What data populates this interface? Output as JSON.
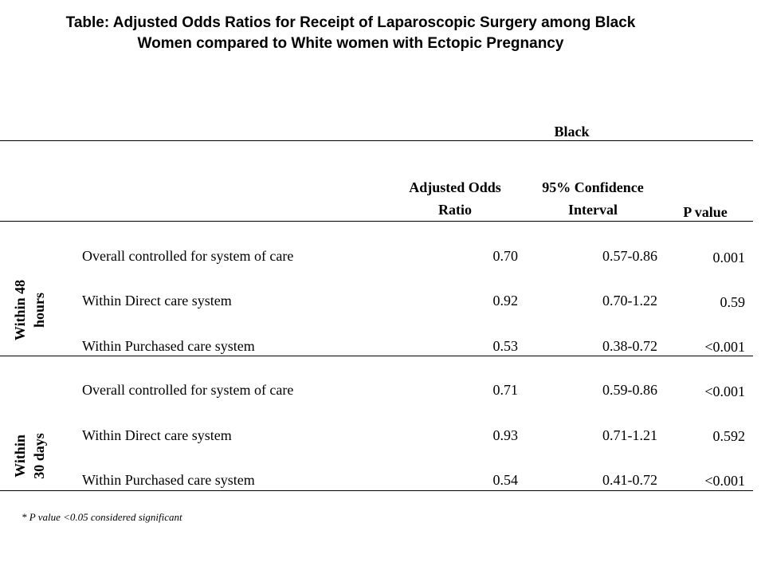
{
  "title": {
    "line1": "Table: Adjusted Odds Ratios for Receipt of Laparoscopic Surgery among Black",
    "line2": "Women compared to White women with Ectopic Pregnancy"
  },
  "table": {
    "group_header": "Black",
    "columns": {
      "aor_line1": "Adjusted Odds",
      "aor_line2": "Ratio",
      "ci_line1": "95% Confidence",
      "ci_line2": "Interval",
      "pvalue": "P value"
    },
    "sections": [
      {
        "label_line1": "Within 48",
        "label_line2": "hours",
        "rows": [
          {
            "label": "Overall controlled for system of care",
            "aor": "0.70",
            "ci": "0.57-0.86",
            "p": "0.001"
          },
          {
            "label": "Within Direct care system",
            "aor": "0.92",
            "ci": "0.70-1.22",
            "p": "0.59"
          },
          {
            "label": "Within Purchased care system",
            "aor": "0.53",
            "ci": "0.38-0.72",
            "p": "<0.001"
          }
        ]
      },
      {
        "label_line1": "Within",
        "label_line2": "30 days",
        "rows": [
          {
            "label": "Overall controlled for system of care",
            "aor": "0.71",
            "ci": "0.59-0.86",
            "p": "<0.001"
          },
          {
            "label": "Within Direct care system",
            "aor": "0.93",
            "ci": "0.71-1.21",
            "p": "0.592"
          },
          {
            "label": "Within Purchased care system",
            "aor": "0.54",
            "ci": "0.41-0.72",
            "p": "<0.001"
          }
        ]
      }
    ],
    "footnote": "* P value <0.05 considered significant"
  }
}
